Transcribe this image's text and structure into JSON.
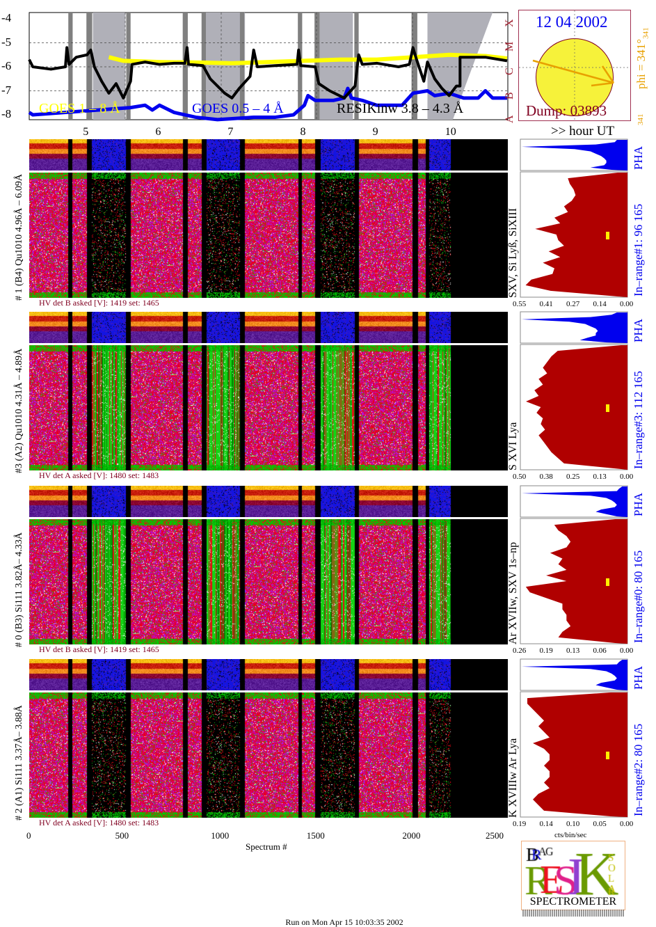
{
  "chart_data": {
    "type": "heatmap",
    "goes_plot": {
      "type": "line",
      "xlabel": ">> hour UT",
      "x_range_hours": [
        4.2,
        10.81
      ],
      "x_ticks": [
        "5",
        "6",
        "7",
        "8",
        "9",
        "10"
      ],
      "y_range": [
        -8.2,
        -3.8
      ],
      "y_ticks": [
        "-4",
        "-5",
        "-6",
        "-7",
        "-8"
      ],
      "flare_classes": [
        "A",
        "B",
        "C",
        "M",
        "X"
      ],
      "legend": [
        "GOES 1 – 8 Å",
        "GOES 0.5 – 4 Å",
        "RESIKinw 3.8 – 4.3 Å"
      ],
      "colors": {
        "goes_long": "#ffff00",
        "goes_short": "#0000ee",
        "resik": "#000000"
      },
      "night_bands_hours": [
        [
          5.08,
          5.53
        ],
        [
          6.6,
          7.18
        ],
        [
          8.18,
          8.67
        ],
        [
          9.7,
          10.8
        ]
      ],
      "gap_bars_hours": [
        [
          4.74,
          4.8
        ],
        [
          4.99,
          5.07
        ],
        [
          5.54,
          5.6
        ],
        [
          6.32,
          6.39
        ],
        [
          6.58,
          6.64
        ],
        [
          7.11,
          7.17
        ],
        [
          7.91,
          7.97
        ],
        [
          8.14,
          8.21
        ],
        [
          8.69,
          8.75
        ],
        [
          9.48,
          9.56
        ]
      ],
      "series": [
        {
          "name": "GOES 1 – 8 Å",
          "points": [
            [
              5.3,
              -5.6
            ],
            [
              5.5,
              -5.75
            ],
            [
              6.0,
              -5.8
            ],
            [
              6.5,
              -5.82
            ],
            [
              7.0,
              -5.85
            ],
            [
              7.5,
              -5.8
            ],
            [
              8.0,
              -5.75
            ],
            [
              8.5,
              -5.7
            ],
            [
              9.0,
              -5.7
            ],
            [
              9.5,
              -5.6
            ],
            [
              10.0,
              -5.5
            ],
            [
              10.5,
              -5.55
            ],
            [
              10.8,
              -5.65
            ]
          ]
        },
        {
          "name": "GOES 0.5 – 4 Å",
          "points": [
            [
              4.2,
              -7.9
            ],
            [
              4.25,
              -8.0
            ],
            [
              5.6,
              -7.7
            ],
            [
              5.8,
              -7.6
            ],
            [
              5.9,
              -7.8
            ],
            [
              6.0,
              -7.6
            ],
            [
              6.2,
              -7.9
            ],
            [
              6.5,
              -8.1
            ],
            [
              6.8,
              -8.2
            ],
            [
              7.3,
              -8.1
            ],
            [
              7.6,
              -8.1
            ],
            [
              7.85,
              -8.0
            ],
            [
              8.0,
              -7.6
            ],
            [
              8.05,
              -7.2
            ],
            [
              8.15,
              -7.4
            ],
            [
              8.4,
              -7.4
            ],
            [
              8.55,
              -7.3
            ],
            [
              8.6,
              -6.9
            ],
            [
              8.65,
              -7.3
            ],
            [
              8.8,
              -7.4
            ],
            [
              9.0,
              -7.6
            ],
            [
              9.35,
              -7.6
            ],
            [
              9.5,
              -7.1
            ],
            [
              9.7,
              -7.0
            ],
            [
              9.8,
              -7.2
            ],
            [
              10.0,
              -7.1
            ],
            [
              10.2,
              -7.3
            ],
            [
              10.4,
              -7.3
            ],
            [
              10.5,
              -7.0
            ],
            [
              10.6,
              -7.3
            ],
            [
              10.8,
              -7.3
            ]
          ]
        },
        {
          "name": "RESIKinw 3.8 – 4.3 Å",
          "points": [
            [
              4.2,
              -5.7
            ],
            [
              4.25,
              -6.0
            ],
            [
              4.5,
              -6.1
            ],
            [
              4.7,
              -6.0
            ],
            [
              4.72,
              -5.2
            ],
            [
              4.75,
              -5.9
            ],
            [
              4.85,
              -5.6
            ],
            [
              5.0,
              -5.5
            ],
            [
              5.05,
              -5.3
            ],
            [
              5.1,
              -6.0
            ],
            [
              5.2,
              -6.6
            ],
            [
              5.3,
              -7.1
            ],
            [
              5.4,
              -6.7
            ],
            [
              5.5,
              -7.3
            ],
            [
              5.6,
              -6.6
            ],
            [
              5.62,
              -5.9
            ],
            [
              5.8,
              -5.8
            ],
            [
              6.0,
              -5.9
            ],
            [
              6.2,
              -5.85
            ],
            [
              6.35,
              -5.85
            ],
            [
              6.38,
              -5.2
            ],
            [
              6.4,
              -5.9
            ],
            [
              6.6,
              -5.95
            ],
            [
              6.7,
              -6.5
            ],
            [
              6.9,
              -7.1
            ],
            [
              7.0,
              -7.3
            ],
            [
              7.1,
              -6.9
            ],
            [
              7.25,
              -6.4
            ],
            [
              7.3,
              -5.3
            ],
            [
              7.35,
              -6.0
            ],
            [
              7.6,
              -5.95
            ],
            [
              7.9,
              -5.9
            ],
            [
              7.92,
              -5.3
            ],
            [
              7.95,
              -5.95
            ],
            [
              8.15,
              -6.0
            ],
            [
              8.2,
              -6.7
            ],
            [
              8.35,
              -7.0
            ],
            [
              8.55,
              -7.3
            ],
            [
              8.7,
              -6.8
            ],
            [
              8.75,
              -5.5
            ],
            [
              8.8,
              -5.9
            ],
            [
              9.0,
              -5.85
            ],
            [
              9.3,
              -6.0
            ],
            [
              9.45,
              -5.9
            ],
            [
              9.5,
              -5.2
            ],
            [
              9.55,
              -5.7
            ],
            [
              9.65,
              -6.6
            ],
            [
              9.7,
              -5.8
            ],
            [
              9.8,
              -6.5
            ],
            [
              9.9,
              -6.9
            ],
            [
              10.0,
              -7.2
            ],
            [
              10.1,
              -6.8
            ],
            [
              10.15,
              -6.8
            ],
            [
              10.15,
              -5.6
            ],
            [
              10.5,
              -5.6
            ],
            [
              10.8,
              -5.75
            ]
          ]
        }
      ]
    },
    "spectrogram": {
      "xlabel": "Spectrum #",
      "x_range": [
        0,
        2500
      ],
      "x_ticks": [
        "0",
        "500",
        "1000",
        "1500",
        "2000",
        "2500"
      ],
      "data_end_spectrum": 2200,
      "gaps": [
        [
          203,
          225
        ],
        [
          298,
          327
        ],
        [
          505,
          530
        ],
        [
          803,
          828
        ],
        [
          901,
          923
        ],
        [
          1101,
          1123
        ],
        [
          1403,
          1424
        ],
        [
          1490,
          1519
        ],
        [
          1700,
          1722
        ],
        [
          1999,
          2028
        ],
        [
          2071,
          2089
        ]
      ],
      "low_count_intervals": [
        [
          327,
          505
        ],
        [
          923,
          1101
        ],
        [
          1519,
          1700
        ],
        [
          2089,
          2200
        ]
      ],
      "profile_xlabel": "cts/bin/sec",
      "panels": [
        {
          "label": "# 1 (B4) Qu1010 4.96Å – 6.09Å",
          "hv": "HV det B asked [V]:  1419 set:  1465",
          "lines": "SXV, Si Lyß, SiXIII",
          "in_range": "In–range#1:  96 165",
          "pha": "PHA",
          "x_ticks": [
            "0.55",
            "0.41",
            "0.27",
            "0.14",
            "0.00"
          ],
          "x_max": 0.55,
          "low_style": "sparse",
          "profile": [
            0.05,
            0.31,
            0.3,
            0.28,
            0.27,
            0.29,
            0.33,
            0.31,
            0.38,
            0.35,
            0.48,
            0.37,
            0.36,
            0.33,
            0.41,
            0.35,
            0.44,
            0.38,
            0.39,
            0.5,
            0.53,
            0.4,
            0.05
          ],
          "pha_profile": [
            0.1,
            0.12,
            0.3,
            1.0,
            0.5,
            0.35,
            0.3,
            0.25,
            0.22,
            0.2,
            0.2,
            0.22,
            0.35,
            0.15
          ]
        },
        {
          "label": "#3 (A2) Qu1010  4.31Å – 4.89Å",
          "hv": "HV det A asked [V]:  1480 set:  1483",
          "lines": "S XVI Lya",
          "in_range": "In–range#3:  112 165",
          "pha": "PHA",
          "x_ticks": [
            "0.50",
            "0.38",
            "0.25",
            "0.13",
            "0.00"
          ],
          "x_max": 0.5,
          "low_style": "green",
          "profile": [
            0.03,
            0.33,
            0.36,
            0.38,
            0.4,
            0.38,
            0.42,
            0.4,
            0.44,
            0.42,
            0.48,
            0.41,
            0.43,
            0.4,
            0.41,
            0.39,
            0.42,
            0.4,
            0.38,
            0.36,
            0.33,
            0.3,
            0.03
          ],
          "pha_profile": [
            0.1,
            0.15,
            0.35,
            1.0,
            0.55,
            0.4,
            0.35,
            0.3,
            0.28,
            0.3,
            0.3,
            0.38,
            0.45,
            0.2
          ]
        },
        {
          "label": "# 0 (B3) Si111  3.82Å– 4.33Å",
          "hv": "HV det B asked [V]:  1419 set:  1465",
          "lines": "Ar XVIIw,  SXV 1s–np",
          "in_range": "In–range#0:   80 165",
          "pha": "PHA",
          "x_ticks": [
            "0.26",
            "0.19",
            "0.13",
            "0.06",
            "0.00"
          ],
          "x_max": 0.26,
          "low_style": "green",
          "profile": [
            0.03,
            0.18,
            0.17,
            0.15,
            0.14,
            0.15,
            0.19,
            0.16,
            0.17,
            0.15,
            0.2,
            0.15,
            0.25,
            0.24,
            0.2,
            0.16,
            0.16,
            0.15,
            0.15,
            0.14,
            0.16,
            0.17,
            0.03
          ],
          "pha_profile": [
            0.05,
            0.08,
            0.1,
            1.0,
            0.35,
            0.2,
            0.15,
            0.12,
            0.1,
            0.12,
            0.25,
            0.3,
            0.2,
            0.1
          ]
        },
        {
          "label": "# 2 (A1) Si111  3.37Å– 3.88Å",
          "hv": "HV det A asked [V]:  1480 set:  1483",
          "lines": "K XVIIIw  Ar Lya",
          "in_range": "In–range#2:   80 165",
          "pha": "PHA",
          "x_ticks": [
            "0.19",
            "0.14",
            "0.10",
            "0.05",
            "0.00"
          ],
          "x_max": 0.19,
          "low_style": "sparse",
          "profile": [
            0.03,
            0.18,
            0.18,
            0.17,
            0.16,
            0.15,
            0.16,
            0.15,
            0.14,
            0.17,
            0.15,
            0.14,
            0.14,
            0.15,
            0.14,
            0.14,
            0.15,
            0.14,
            0.16,
            0.17,
            0.16,
            0.15,
            0.03
          ],
          "pha_profile": [
            0.05,
            0.08,
            0.1,
            1.0,
            0.35,
            0.2,
            0.15,
            0.12,
            0.1,
            0.12,
            0.25,
            0.3,
            0.2,
            0.1
          ]
        }
      ]
    }
  },
  "sun_panel": {
    "date": "12 04 2002",
    "dump": "Dump: 03893",
    "phi": "phi = 341°",
    "phi_sub": "341",
    "phi_small": "341"
  },
  "logo": {
    "letters": [
      "B",
      "R",
      "A",
      "G",
      "R",
      "E",
      "S",
      "I",
      "K",
      "S",
      "O",
      "L",
      "A",
      "R"
    ],
    "caption": "SPECTROMETER"
  },
  "footer": "Run on Mon Apr 15 10:03:35 2002"
}
